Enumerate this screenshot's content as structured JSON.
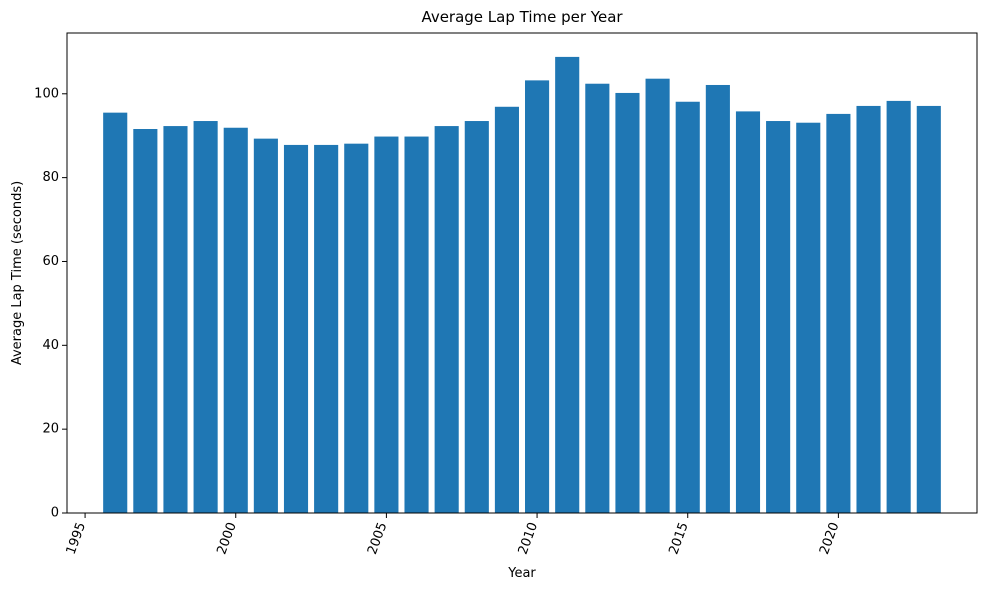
{
  "chart_data": {
    "type": "bar",
    "title": "Average Lap Time per Year",
    "xlabel": "Year",
    "ylabel": "Average Lap Time (seconds)",
    "bar_color": "#1f77b4",
    "xlim": [
      1994.4,
      2024.6
    ],
    "ylim": [
      0,
      114.5
    ],
    "x_ticks": [
      1995,
      2000,
      2005,
      2010,
      2015,
      2020
    ],
    "x_tick_labels": [
      "1995",
      "2000",
      "2005",
      "2010",
      "2015",
      "2020"
    ],
    "x_tick_rotation": -70,
    "y_ticks": [
      0,
      20,
      40,
      60,
      80,
      100
    ],
    "y_tick_labels": [
      "0",
      "20",
      "40",
      "60",
      "80",
      "100"
    ],
    "grid": false,
    "x": [
      1996,
      1997,
      1998,
      1999,
      2000,
      2001,
      2002,
      2003,
      2004,
      2005,
      2006,
      2007,
      2008,
      2009,
      2010,
      2011,
      2012,
      2013,
      2014,
      2015,
      2016,
      2017,
      2018,
      2019,
      2020,
      2021,
      2022,
      2023
    ],
    "values": [
      95.5,
      91.6,
      92.3,
      93.5,
      91.9,
      89.3,
      87.8,
      87.8,
      88.1,
      89.8,
      89.8,
      92.3,
      93.5,
      96.9,
      103.2,
      108.8,
      102.4,
      100.2,
      103.6,
      98.1,
      102.1,
      95.8,
      93.5,
      93.1,
      95.2,
      97.1,
      98.3,
      97.1
    ]
  }
}
